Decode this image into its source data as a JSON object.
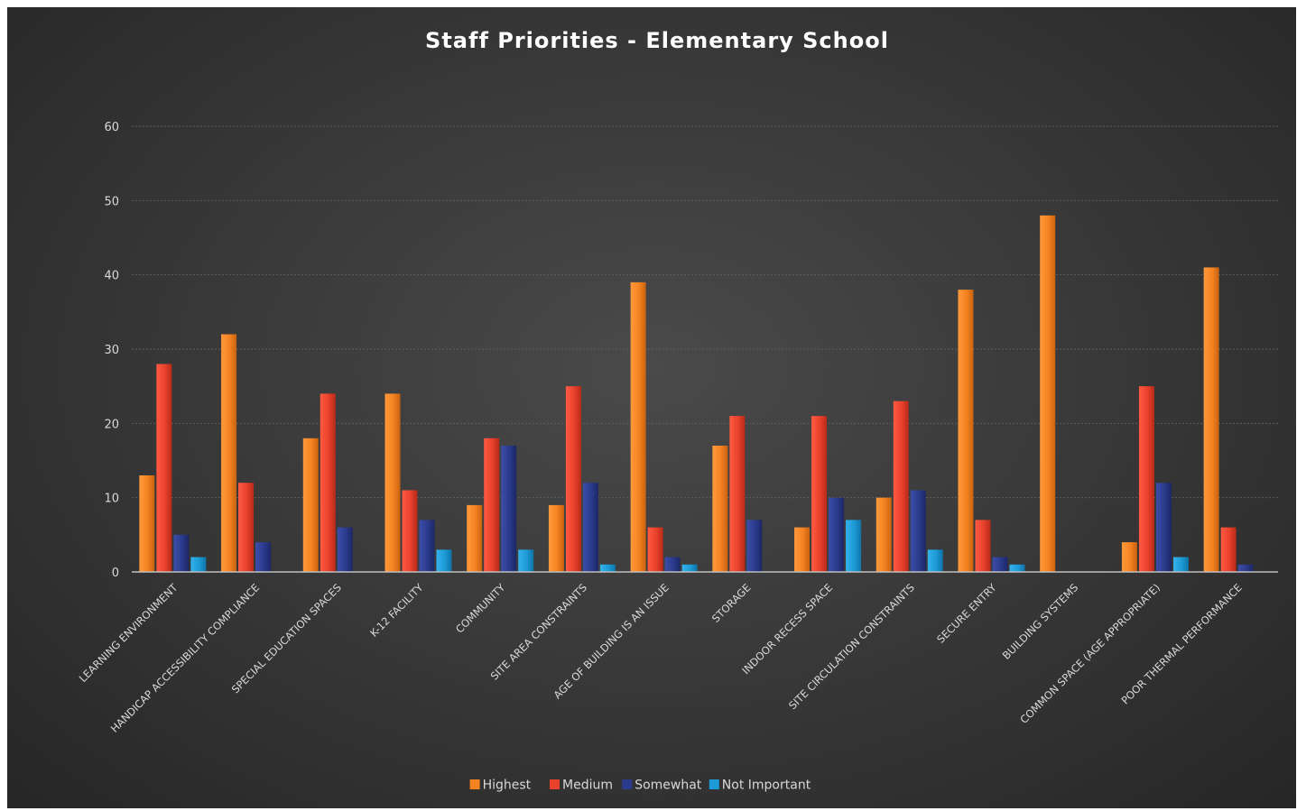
{
  "chart_data": {
    "type": "bar",
    "title": "Staff Priorities - Elementary School",
    "xlabel": "",
    "ylabel": "",
    "ylim": [
      0,
      60
    ],
    "yticks": [
      0,
      10,
      20,
      30,
      40,
      50,
      60
    ],
    "grid": true,
    "legend_position": "bottom",
    "categories": [
      "LEARNING ENVIRONMENT",
      "HANDICAP ACCESSIBILITY COMPLIANCE",
      "SPECIAL EDUCATION SPACES",
      "K-12 FACILITY",
      "COMMUNITY",
      "SITE AREA CONSTRAINTS",
      "AGE OF BUILDING IS AN ISSUE",
      "STORAGE",
      "INDOOR RECESS SPACE",
      "SITE CIRCULATION CONSTRAINTS",
      "SECURE ENTRY",
      "BUILDING SYSTEMS",
      "COMMON SPACE (AGE APPROPRIATE)",
      "POOR THERMAL PERFORMANCE"
    ],
    "series": [
      {
        "name": "Highest",
        "color": "#f58220",
        "values": [
          13,
          32,
          18,
          24,
          9,
          9,
          39,
          17,
          6,
          10,
          38,
          48,
          4,
          41
        ]
      },
      {
        "name": "Medium",
        "color": "#e8412c",
        "values": [
          28,
          12,
          24,
          11,
          18,
          25,
          6,
          21,
          21,
          23,
          7,
          0,
          25,
          6
        ]
      },
      {
        "name": "Somewhat",
        "color": "#2b3a8c",
        "values": [
          5,
          4,
          6,
          7,
          17,
          12,
          2,
          7,
          10,
          11,
          2,
          0,
          12,
          1
        ]
      },
      {
        "name": "Not Important",
        "color": "#1c9ad6",
        "values": [
          2,
          0,
          0,
          3,
          3,
          1,
          1,
          0,
          7,
          3,
          1,
          0,
          2,
          0
        ]
      }
    ]
  }
}
